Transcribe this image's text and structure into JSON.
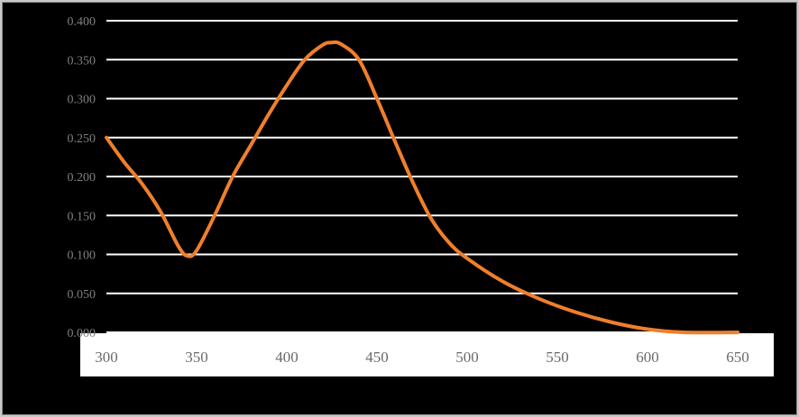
{
  "chart_data": {
    "type": "line",
    "title": "",
    "xlabel": "",
    "ylabel": "",
    "xlim": [
      300,
      650
    ],
    "ylim": [
      0,
      0.4
    ],
    "grid": "horizontal",
    "x_ticks": [
      "300",
      "350",
      "400",
      "450",
      "500",
      "550",
      "600",
      "650"
    ],
    "y_ticks": [
      "0.000",
      "0.050",
      "0.100",
      "0.150",
      "0.200",
      "0.250",
      "0.300",
      "0.350",
      "0.400"
    ],
    "series": [
      {
        "color": "#f07f2b",
        "x": [
          300,
          310,
          320,
          330,
          340,
          345,
          350,
          360,
          370,
          380,
          390,
          400,
          410,
          420,
          425,
          430,
          440,
          450,
          460,
          470,
          480,
          490,
          500,
          520,
          540,
          560,
          580,
          600,
          620,
          650
        ],
        "y": [
          0.25,
          0.218,
          0.19,
          0.155,
          0.11,
          0.098,
          0.105,
          0.15,
          0.2,
          0.24,
          0.28,
          0.317,
          0.35,
          0.369,
          0.372,
          0.37,
          0.35,
          0.3,
          0.245,
          0.192,
          0.146,
          0.115,
          0.095,
          0.065,
          0.043,
          0.026,
          0.013,
          0.004,
          0.0,
          0.0
        ]
      }
    ]
  }
}
